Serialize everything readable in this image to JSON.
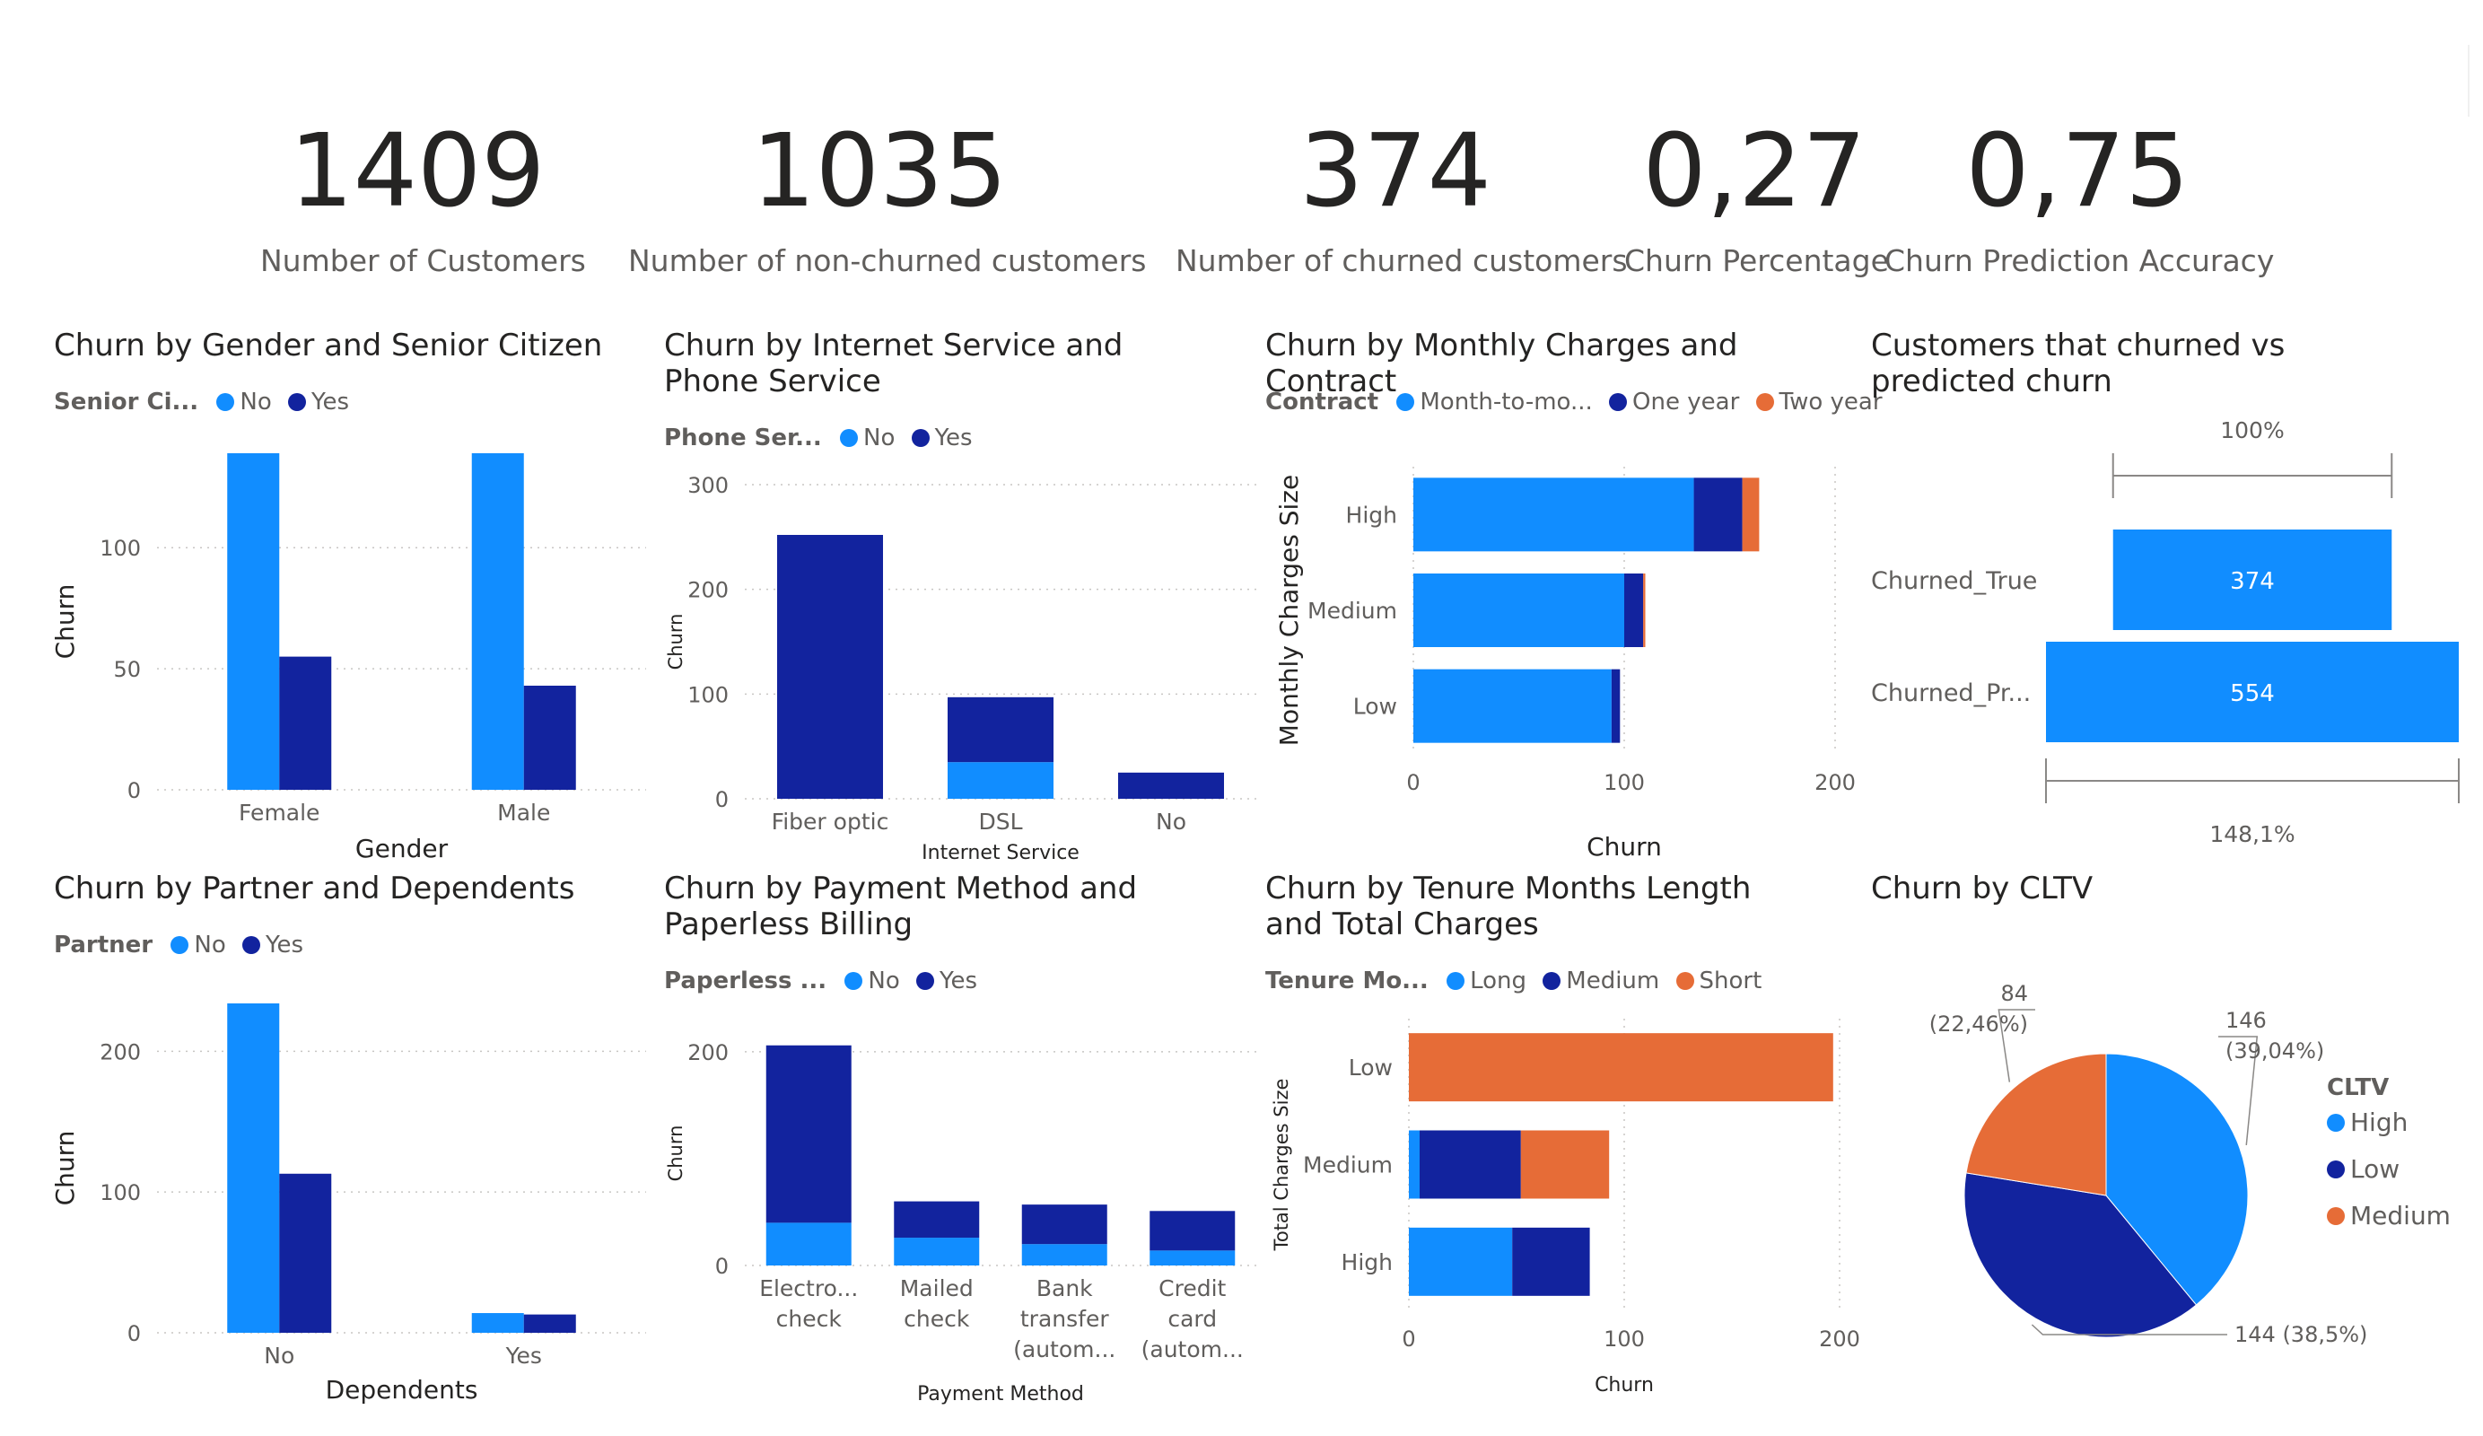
{
  "kpis": [
    {
      "value": "1409",
      "label": "Number of Customers"
    },
    {
      "value": "1035",
      "label": "Number of non-churned customers"
    },
    {
      "value": "374",
      "label": "Number of churned customers"
    },
    {
      "value": "0,27",
      "label": "Churn Percentage"
    },
    {
      "value": "0,75",
      "label": "Churn Prediction Accuracy"
    }
  ],
  "colors": {
    "light": "#118DFF",
    "dark": "#12239E",
    "orange": "#E66C37"
  },
  "chart_data": [
    {
      "id": "c1",
      "type": "bar",
      "title": "Churn by Gender and Senior Citizen",
      "legend_title": "Senior Ci...",
      "categories": [
        "Female",
        "Male"
      ],
      "series": [
        {
          "name": "No",
          "values": [
            139,
            139
          ]
        },
        {
          "name": "Yes",
          "values": [
            55,
            43
          ]
        }
      ],
      "xlabel": "Gender",
      "ylabel": "Churn",
      "ylim": [
        0,
        139
      ],
      "yticks": [
        0,
        50,
        100
      ]
    },
    {
      "id": "c2",
      "type": "bar",
      "stacked": true,
      "title": "Churn by Internet Service and Phone Service",
      "legend_title": "Phone Ser...",
      "categories": [
        "Fiber optic",
        "DSL",
        "No"
      ],
      "series": [
        {
          "name": "No",
          "values": [
            0,
            35,
            0
          ]
        },
        {
          "name": "Yes",
          "values": [
            252,
            62,
            25
          ]
        }
      ],
      "xlabel": "Internet Service",
      "ylabel": "Churn",
      "ylim": [
        0,
        300
      ],
      "yticks": [
        0,
        100,
        200,
        300
      ]
    },
    {
      "id": "c3",
      "type": "bar",
      "orientation": "horizontal",
      "stacked": true,
      "title": "Churn by Monthly Charges and Contract",
      "legend_title": "Contract",
      "categories": [
        "High",
        "Medium",
        "Low"
      ],
      "series": [
        {
          "name": "Month-to-mo...",
          "values": [
            133,
            100,
            94
          ]
        },
        {
          "name": "One year",
          "values": [
            23,
            9,
            4
          ]
        },
        {
          "name": "Two year",
          "values": [
            8,
            1,
            0
          ]
        }
      ],
      "xlabel": "Churn",
      "ylabel": "Monthly Charges Size",
      "xlim": [
        0,
        200
      ],
      "xticks": [
        0,
        100,
        200
      ]
    },
    {
      "id": "c4",
      "type": "funnel",
      "title": "Customers that churned vs predicted churn",
      "categories": [
        "Churned_True",
        "Churned_Pr..."
      ],
      "values": [
        374,
        554
      ],
      "top_label": "100%",
      "bottom_label": "148,1%"
    },
    {
      "id": "c5",
      "type": "bar",
      "title": "Churn by Partner and Dependents",
      "legend_title": "Partner",
      "categories": [
        "No",
        "Yes"
      ],
      "series": [
        {
          "name": "No",
          "values": [
            234,
            14
          ]
        },
        {
          "name": "Yes",
          "values": [
            113,
            13
          ]
        }
      ],
      "xlabel": "Dependents",
      "ylabel": "Churn",
      "ylim": [
        0,
        234
      ],
      "yticks": [
        0,
        100,
        200
      ]
    },
    {
      "id": "c6",
      "type": "bar",
      "stacked": true,
      "title": "Churn by Payment Method and Paperless Billing",
      "legend_title": "Paperless ...",
      "categories": [
        "Electro... check",
        "Mailed check",
        "Bank transfer (autom...",
        "Credit card (autom..."
      ],
      "series": [
        {
          "name": "No",
          "values": [
            40,
            26,
            20,
            14
          ]
        },
        {
          "name": "Yes",
          "values": [
            166,
            34,
            37,
            37
          ]
        }
      ],
      "xlabel": "Payment Method",
      "ylabel": "Churn",
      "ylim": [
        0,
        210
      ],
      "yticks": [
        0,
        200
      ]
    },
    {
      "id": "c7",
      "type": "bar",
      "orientation": "horizontal",
      "stacked": true,
      "title": "Churn by Tenure Months Length and Total Charges",
      "legend_title": "Tenure Mo...",
      "categories": [
        "Low",
        "Medium",
        "High"
      ],
      "series": [
        {
          "name": "Long",
          "values": [
            0,
            5,
            48
          ]
        },
        {
          "name": "Medium",
          "values": [
            0,
            47,
            36
          ]
        },
        {
          "name": "Short",
          "values": [
            197,
            41,
            0
          ]
        }
      ],
      "xlabel": "Churn",
      "ylabel": "Total Charges Size",
      "xlim": [
        0,
        200
      ],
      "xticks": [
        0,
        100,
        200
      ]
    },
    {
      "id": "c8",
      "type": "pie",
      "title": "Churn by CLTV",
      "legend_title": "CLTV",
      "categories": [
        "High",
        "Low",
        "Medium"
      ],
      "values": [
        146,
        144,
        84
      ],
      "labels": [
        "146 (39,04%)",
        "144 (38,5%)",
        "84 (22,46%)"
      ]
    }
  ]
}
